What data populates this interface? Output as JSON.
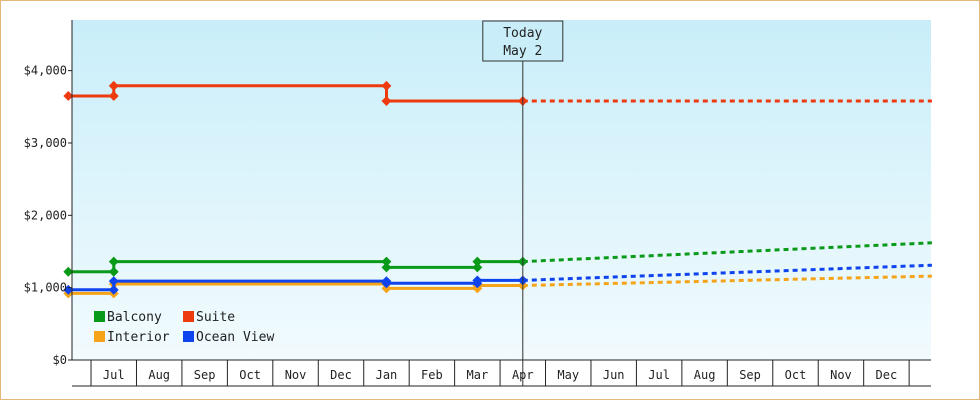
{
  "chart_data": {
    "type": "line",
    "style": "step",
    "y_unit": "$",
    "ylim": [
      0,
      4700
    ],
    "y_ticks": [
      {
        "value": 0,
        "label": "$0"
      },
      {
        "value": 1000,
        "label": "$1,000"
      },
      {
        "value": 2000,
        "label": "$2,000"
      },
      {
        "value": 3000,
        "label": "$3,000"
      },
      {
        "value": 4000,
        "label": "$4,000"
      }
    ],
    "x_months": [
      "Jul",
      "Aug",
      "Sep",
      "Oct",
      "Nov",
      "Dec",
      "Jan",
      "Feb",
      "Mar",
      "Apr",
      "May",
      "Jun",
      "Jul",
      "Aug",
      "Sep",
      "Oct",
      "Nov",
      "Dec"
    ],
    "today": {
      "line1": "Today",
      "line2": "May 2",
      "index": 10.0
    },
    "legend": {
      "placement": "bottom-left",
      "columns": 2
    },
    "grid": false,
    "background_gradient": [
      "#c9eef9",
      "#f2fbfe"
    ],
    "series": [
      {
        "name": "Balcony",
        "color": "#0a9a1a",
        "steps": [
          [
            0,
            1220
          ],
          [
            1,
            1220
          ],
          [
            1,
            1360
          ],
          [
            7,
            1360
          ],
          [
            7,
            1280
          ],
          [
            9,
            1280
          ],
          [
            9,
            1360
          ],
          [
            10,
            1360
          ]
        ],
        "forecast": [
          [
            10,
            1360
          ],
          [
            19,
            1620
          ]
        ]
      },
      {
        "name": "Suite",
        "color": "#ee3a0f",
        "steps": [
          [
            0,
            3650
          ],
          [
            1,
            3650
          ],
          [
            1,
            3790
          ],
          [
            7,
            3790
          ],
          [
            7,
            3580
          ],
          [
            10,
            3580
          ]
        ],
        "forecast": [
          [
            10,
            3580
          ],
          [
            19,
            3580
          ]
        ]
      },
      {
        "name": "Interior",
        "color": "#f5a318",
        "steps": [
          [
            0,
            920
          ],
          [
            1,
            920
          ],
          [
            1,
            1050
          ],
          [
            7,
            1050
          ],
          [
            7,
            990
          ],
          [
            9,
            990
          ],
          [
            9,
            1030
          ],
          [
            10,
            1030
          ]
        ],
        "forecast": [
          [
            10,
            1030
          ],
          [
            19,
            1160
          ]
        ]
      },
      {
        "name": "Ocean View",
        "color": "#0f43ee",
        "steps": [
          [
            0,
            970
          ],
          [
            1,
            970
          ],
          [
            1,
            1090
          ],
          [
            7,
            1090
          ],
          [
            7,
            1060
          ],
          [
            9,
            1060
          ],
          [
            9,
            1100
          ],
          [
            10,
            1100
          ]
        ],
        "forecast": [
          [
            10,
            1100
          ],
          [
            19,
            1310
          ]
        ]
      }
    ]
  }
}
